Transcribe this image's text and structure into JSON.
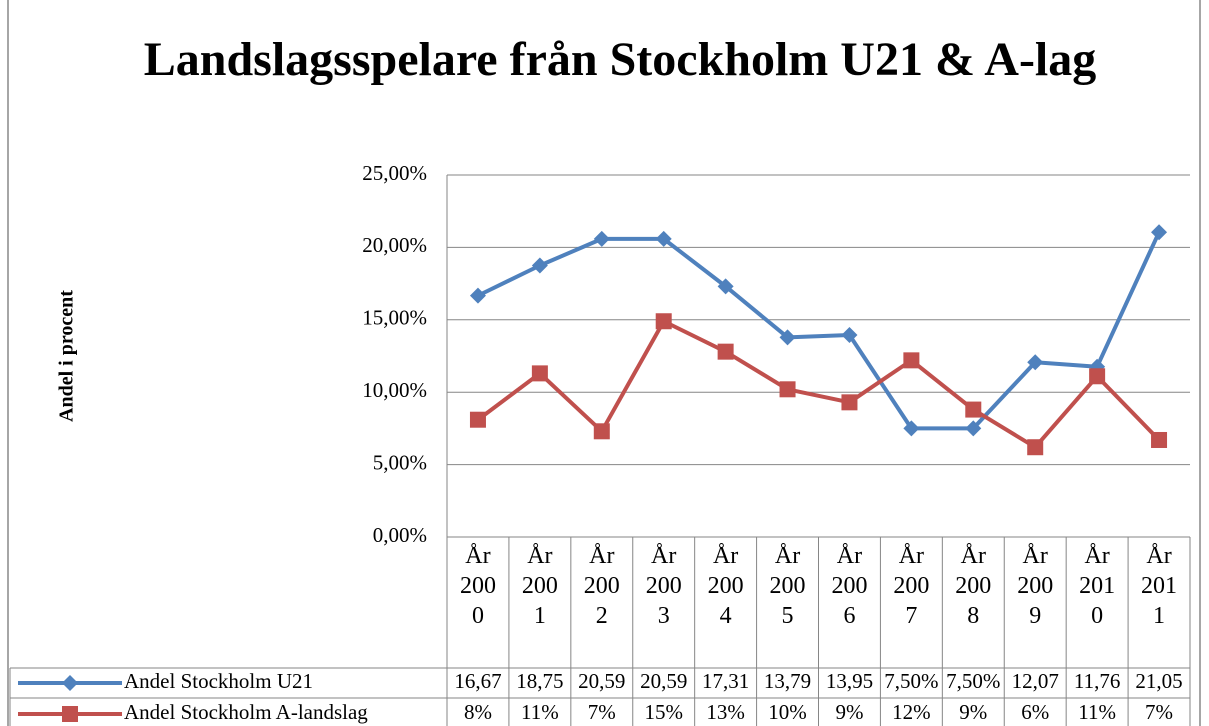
{
  "chart_data": {
    "type": "line",
    "title": "Landslagsspelare från Stockholm U21 & A-lag",
    "y_label": "Andel i procent",
    "categories": [
      "År 2000",
      "År 2001",
      "År 2002",
      "År 2003",
      "År 2004",
      "År 2005",
      "År 2006",
      "År 2007",
      "År 2008",
      "År 2009",
      "År 2010",
      "År 2011"
    ],
    "series": [
      {
        "name": "Andel Stockholm U21",
        "color": "#4f81bd",
        "marker": "diamond",
        "values": [
          16.67,
          18.75,
          20.59,
          20.59,
          17.31,
          13.79,
          13.95,
          7.5,
          7.5,
          12.07,
          11.76,
          21.05
        ],
        "value_labels": [
          "16,67",
          "18,75",
          "20,59",
          "20,59",
          "17,31",
          "13,79",
          "13,95",
          "7,50%",
          "7,50%",
          "12,07",
          "11,76",
          "21,05"
        ]
      },
      {
        "name": "Andel Stockholm A-landslag",
        "color": "#c0504d",
        "marker": "square",
        "values": [
          8.1,
          11.3,
          7.3,
          14.9,
          12.8,
          10.2,
          9.3,
          12.2,
          8.8,
          6.2,
          11.1,
          6.7
        ],
        "value_labels": [
          "8%",
          "11%",
          "7%",
          "15%",
          "13%",
          "10%",
          "9%",
          "12%",
          "9%",
          "6%",
          "11%",
          "7%"
        ]
      }
    ],
    "ylim": [
      0,
      25
    ],
    "yticks": [
      {
        "value": 0,
        "label": "0,00%"
      },
      {
        "value": 5,
        "label": "5,00%"
      },
      {
        "value": 10,
        "label": "10,00%"
      },
      {
        "value": 15,
        "label": "15,00%"
      },
      {
        "value": 20,
        "label": "20,00%"
      },
      {
        "value": 25,
        "label": "25,00%"
      }
    ],
    "grid": true
  }
}
